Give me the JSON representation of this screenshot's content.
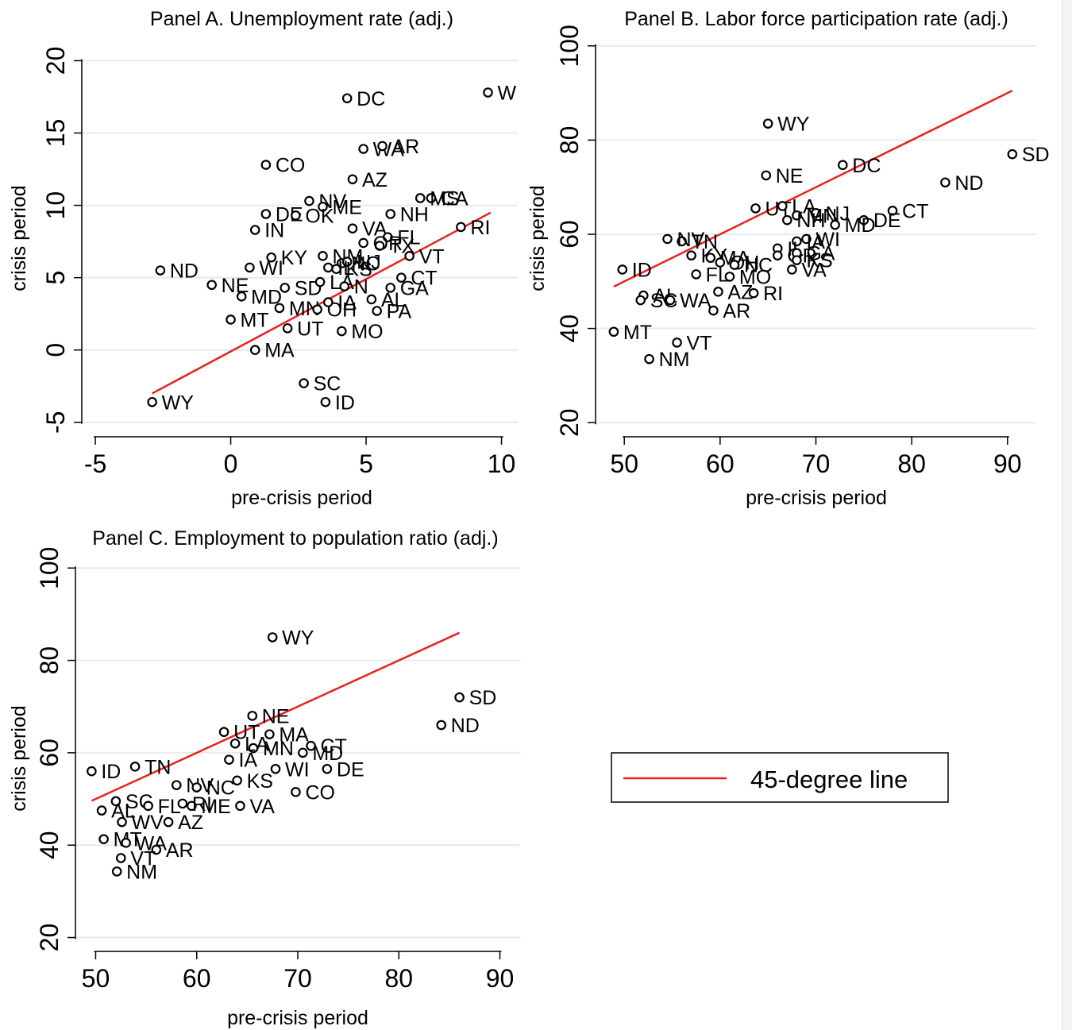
{
  "legend": {
    "label": "45-degree line",
    "color": "#e8231f"
  },
  "chart_data": [
    {
      "type": "scatter",
      "title": "Panel A. Unemployment rate (adj.)",
      "xlabel": "pre-crisis period",
      "ylabel": "crisis period",
      "xlim": [
        -5.5,
        10.6
      ],
      "ylim": [
        -6,
        22
      ],
      "xticks": [
        -5,
        0,
        5,
        10
      ],
      "yticks": [
        -5,
        0,
        5,
        10,
        15,
        20
      ],
      "grid": true,
      "line": [
        [
          -2.9,
          -3.0
        ],
        [
          9.6,
          9.5
        ]
      ],
      "points": [
        {
          "label": "DC",
          "x": 4.3,
          "y": 17.4
        },
        {
          "label": "W",
          "x": 9.5,
          "y": 17.8
        },
        {
          "label": "WA",
          "x": 4.9,
          "y": 13.9
        },
        {
          "label": "AR",
          "x": 5.6,
          "y": 14.1
        },
        {
          "label": "CO",
          "x": 1.3,
          "y": 12.8
        },
        {
          "label": "AZ",
          "x": 4.5,
          "y": 11.8
        },
        {
          "label": "CA",
          "x": 7.4,
          "y": 10.5
        },
        {
          "label": "MS",
          "x": 7.0,
          "y": 10.5
        },
        {
          "label": "NV",
          "x": 2.9,
          "y": 10.3
        },
        {
          "label": "ME",
          "x": 3.4,
          "y": 9.9
        },
        {
          "label": "NH",
          "x": 5.9,
          "y": 9.4
        },
        {
          "label": "DE",
          "x": 1.3,
          "y": 9.4
        },
        {
          "label": "OK",
          "x": 2.4,
          "y": 9.3
        },
        {
          "label": "IN",
          "x": 0.9,
          "y": 8.3
        },
        {
          "label": "VA",
          "x": 4.5,
          "y": 8.4
        },
        {
          "label": "RI",
          "x": 8.5,
          "y": 8.5
        },
        {
          "label": "FL",
          "x": 5.8,
          "y": 7.8
        },
        {
          "label": "TX",
          "x": 5.5,
          "y": 7.2
        },
        {
          "label": "OR",
          "x": 4.9,
          "y": 7.4
        },
        {
          "label": "VT",
          "x": 6.6,
          "y": 6.5
        },
        {
          "label": "KY",
          "x": 1.5,
          "y": 6.4
        },
        {
          "label": "NM",
          "x": 3.4,
          "y": 6.5
        },
        {
          "label": "WI",
          "x": 0.7,
          "y": 5.7
        },
        {
          "label": "ND",
          "x": -2.6,
          "y": 5.5
        },
        {
          "label": "NC",
          "x": 4.1,
          "y": 6.0
        },
        {
          "label": "NJ",
          "x": 4.3,
          "y": 6.1
        },
        {
          "label": "KS",
          "x": 3.9,
          "y": 5.6
        },
        {
          "label": "IL",
          "x": 3.6,
          "y": 5.7
        },
        {
          "label": "CT",
          "x": 6.3,
          "y": 5.0
        },
        {
          "label": "GA",
          "x": 5.9,
          "y": 4.3
        },
        {
          "label": "NE",
          "x": -0.7,
          "y": 4.5
        },
        {
          "label": "SD",
          "x": 2.0,
          "y": 4.3
        },
        {
          "label": "LA",
          "x": 3.3,
          "y": 4.7
        },
        {
          "label": "N",
          "x": 4.2,
          "y": 4.4
        },
        {
          "label": "MD",
          "x": 0.4,
          "y": 3.7
        },
        {
          "label": "AL",
          "x": 5.2,
          "y": 3.5
        },
        {
          "label": "MN",
          "x": 1.8,
          "y": 2.9
        },
        {
          "label": "OH",
          "x": 3.2,
          "y": 2.8
        },
        {
          "label": "IA",
          "x": 3.6,
          "y": 3.3
        },
        {
          "label": "PA",
          "x": 5.4,
          "y": 2.7
        },
        {
          "label": "MT",
          "x": 0.0,
          "y": 2.1
        },
        {
          "label": "UT",
          "x": 2.1,
          "y": 1.5
        },
        {
          "label": "MO",
          "x": 4.1,
          "y": 1.3
        },
        {
          "label": "MA",
          "x": 0.9,
          "y": 0.0
        },
        {
          "label": "SC",
          "x": 2.7,
          "y": -2.3
        },
        {
          "label": "ID",
          "x": 3.5,
          "y": -3.6
        },
        {
          "label": "WY",
          "x": -2.9,
          "y": -3.6
        }
      ]
    },
    {
      "type": "scatter",
      "title": "Panel B. Labor force participation rate (adj.)",
      "xlabel": "pre-crisis period",
      "ylabel": "crisis period",
      "xlim": [
        47,
        93
      ],
      "ylim": [
        17,
        103
      ],
      "xticks": [
        50,
        60,
        70,
        80,
        90
      ],
      "yticks": [
        20,
        40,
        60,
        80,
        100
      ],
      "grid": true,
      "line": [
        [
          48.9,
          48.9
        ],
        [
          90.5,
          90.5
        ]
      ],
      "points": [
        {
          "label": "WY",
          "x": 65.0,
          "y": 83.5
        },
        {
          "label": "SD",
          "x": 90.5,
          "y": 77.0
        },
        {
          "label": "DC",
          "x": 72.8,
          "y": 74.7
        },
        {
          "label": "NE",
          "x": 64.8,
          "y": 72.5
        },
        {
          "label": "ND",
          "x": 83.5,
          "y": 71.0
        },
        {
          "label": "UT",
          "x": 63.7,
          "y": 65.5
        },
        {
          "label": "LA",
          "x": 66.5,
          "y": 66.0
        },
        {
          "label": "CT",
          "x": 78.0,
          "y": 65.0
        },
        {
          "label": "NJ",
          "x": 70.0,
          "y": 64.5
        },
        {
          "label": "MN",
          "x": 68.0,
          "y": 64.0
        },
        {
          "label": "DE",
          "x": 75.0,
          "y": 63.0
        },
        {
          "label": "MD",
          "x": 72.0,
          "y": 62.0
        },
        {
          "label": "NH",
          "x": 67.0,
          "y": 63.0
        },
        {
          "label": "TN",
          "x": 56.0,
          "y": 58.5
        },
        {
          "label": "NV",
          "x": 54.5,
          "y": 59.0
        },
        {
          "label": "WI",
          "x": 69.0,
          "y": 59.0
        },
        {
          "label": "IA",
          "x": 68.0,
          "y": 58.5
        },
        {
          "label": "KY",
          "x": 57.0,
          "y": 55.5
        },
        {
          "label": "MA",
          "x": 59.0,
          "y": 55.0
        },
        {
          "label": "OH",
          "x": 60.0,
          "y": 54.0
        },
        {
          "label": "IL",
          "x": 66.0,
          "y": 57.0
        },
        {
          "label": "OR",
          "x": 66.0,
          "y": 55.5
        },
        {
          "label": "GA",
          "x": 68.0,
          "y": 56.0
        },
        {
          "label": "NC",
          "x": 61.5,
          "y": 53.5
        },
        {
          "label": "KS",
          "x": 68.0,
          "y": 54.5
        },
        {
          "label": "VA",
          "x": 67.5,
          "y": 52.5
        },
        {
          "label": "ID",
          "x": 49.8,
          "y": 52.5
        },
        {
          "label": "FL",
          "x": 57.5,
          "y": 51.5
        },
        {
          "label": "MO",
          "x": 61.0,
          "y": 51.0
        },
        {
          "label": "AZ",
          "x": 59.8,
          "y": 47.8
        },
        {
          "label": "RI",
          "x": 63.5,
          "y": 47.5
        },
        {
          "label": "AL",
          "x": 52.0,
          "y": 47.0
        },
        {
          "label": "SC",
          "x": 51.7,
          "y": 46.0
        },
        {
          "label": "WA",
          "x": 54.8,
          "y": 46.0
        },
        {
          "label": "AR",
          "x": 59.3,
          "y": 43.8
        },
        {
          "label": "MT",
          "x": 48.9,
          "y": 39.3
        },
        {
          "label": "VT",
          "x": 55.5,
          "y": 37.0
        },
        {
          "label": "NM",
          "x": 52.6,
          "y": 33.5
        }
      ]
    },
    {
      "type": "scatter",
      "title": "Panel C. Employment to population ratio (adj.)",
      "xlabel": "pre-crisis period",
      "ylabel": "crisis period",
      "xlim": [
        48,
        92
      ],
      "ylim": [
        17,
        104
      ],
      "xticks": [
        50,
        60,
        70,
        80,
        90
      ],
      "yticks": [
        20,
        40,
        60,
        80,
        100
      ],
      "grid": true,
      "line": [
        [
          49.6,
          49.6
        ],
        [
          86.0,
          86.0
        ]
      ],
      "points": [
        {
          "label": "WY",
          "x": 67.5,
          "y": 85.0
        },
        {
          "label": "SD",
          "x": 86.0,
          "y": 72.0
        },
        {
          "label": "ND",
          "x": 84.2,
          "y": 66.0
        },
        {
          "label": "NE",
          "x": 65.5,
          "y": 68.0
        },
        {
          "label": "UT",
          "x": 62.7,
          "y": 64.5
        },
        {
          "label": "MA",
          "x": 67.2,
          "y": 64.0
        },
        {
          "label": "CT",
          "x": 71.3,
          "y": 61.5
        },
        {
          "label": "MN",
          "x": 65.6,
          "y": 61.0
        },
        {
          "label": "MD",
          "x": 70.5,
          "y": 60.0
        },
        {
          "label": "LA",
          "x": 63.8,
          "y": 62.0
        },
        {
          "label": "DE",
          "x": 72.9,
          "y": 56.5
        },
        {
          "label": "WI",
          "x": 67.8,
          "y": 56.5
        },
        {
          "label": "ID",
          "x": 49.6,
          "y": 56.0
        },
        {
          "label": "TN",
          "x": 53.9,
          "y": 57.0
        },
        {
          "label": "IA",
          "x": 63.2,
          "y": 58.5
        },
        {
          "label": "KS",
          "x": 64.0,
          "y": 54.0
        },
        {
          "label": "CO",
          "x": 69.8,
          "y": 51.5
        },
        {
          "label": "VA",
          "x": 64.3,
          "y": 48.5
        },
        {
          "label": "NV",
          "x": 58.0,
          "y": 53.0
        },
        {
          "label": "NC",
          "x": 60.0,
          "y": 52.5
        },
        {
          "label": "SC",
          "x": 52.0,
          "y": 49.5
        },
        {
          "label": "AL",
          "x": 50.6,
          "y": 47.5
        },
        {
          "label": "FL",
          "x": 55.2,
          "y": 48.5
        },
        {
          "label": "ME",
          "x": 59.5,
          "y": 48.5
        },
        {
          "label": "RI",
          "x": 58.6,
          "y": 49.0
        },
        {
          "label": "WV",
          "x": 52.6,
          "y": 45.0
        },
        {
          "label": "AZ",
          "x": 57.2,
          "y": 45.0
        },
        {
          "label": "MT",
          "x": 50.8,
          "y": 41.3
        },
        {
          "label": "WA",
          "x": 53.0,
          "y": 40.5
        },
        {
          "label": "AR",
          "x": 56.0,
          "y": 39.0
        },
        {
          "label": "VT",
          "x": 52.5,
          "y": 37.2
        },
        {
          "label": "NM",
          "x": 52.1,
          "y": 34.3
        }
      ]
    }
  ]
}
